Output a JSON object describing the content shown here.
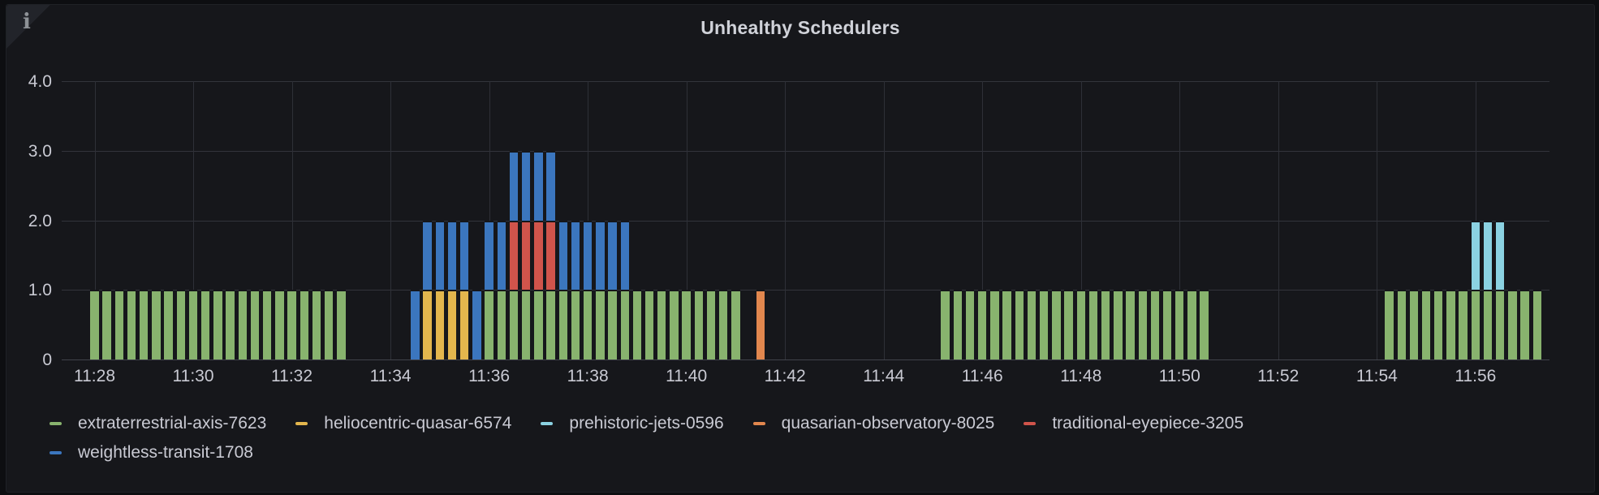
{
  "panel": {
    "title": "Unhealthy Schedulers",
    "info_icon": "i",
    "colors": {
      "page_bg": "#0d0e11",
      "panel_bg": "#16171b",
      "grid": "#32343b",
      "axis_text": "#c9cad3",
      "title_text": "#d0d2d9"
    }
  },
  "chart_data": {
    "type": "bar",
    "stacked": true,
    "bin_seconds": 15,
    "title": "Unhealthy Schedulers",
    "xlabel": "",
    "ylabel": "",
    "ylim": [
      0,
      4
    ],
    "grid": true,
    "legend_position": "bottom-left",
    "yticks": [
      {
        "value": 0,
        "label": "0"
      },
      {
        "value": 1,
        "label": "1.0"
      },
      {
        "value": 2,
        "label": "2.0"
      },
      {
        "value": 3,
        "label": "3.0"
      },
      {
        "value": 4,
        "label": "4.0"
      }
    ],
    "xticks": [
      "11:28",
      "11:30",
      "11:32",
      "11:34",
      "11:36",
      "11:38",
      "11:40",
      "11:42",
      "11:44",
      "11:46",
      "11:48",
      "11:50",
      "11:52",
      "11:54",
      "11:56"
    ],
    "x_domain": {
      "start": "11:27:20",
      "end": "11:57:30"
    },
    "series": [
      {
        "name": "extraterrestrial-axis-7623",
        "color": "#88b36e"
      },
      {
        "name": "heliocentric-quasar-6574",
        "color": "#e3b64d"
      },
      {
        "name": "prehistoric-jets-0596",
        "color": "#8bd2e2"
      },
      {
        "name": "quasarian-observatory-8025",
        "color": "#e2874e"
      },
      {
        "name": "traditional-eyepiece-3205",
        "color": "#d0544b"
      },
      {
        "name": "weightless-transit-1708",
        "color": "#3b76be"
      }
    ],
    "points": [
      {
        "t": "11:28:00",
        "stack": [
          [
            0,
            1
          ]
        ]
      },
      {
        "t": "11:28:15",
        "stack": [
          [
            0,
            1
          ]
        ]
      },
      {
        "t": "11:28:30",
        "stack": [
          [
            0,
            1
          ]
        ]
      },
      {
        "t": "11:28:45",
        "stack": [
          [
            0,
            1
          ]
        ]
      },
      {
        "t": "11:29:00",
        "stack": [
          [
            0,
            1
          ]
        ]
      },
      {
        "t": "11:29:15",
        "stack": [
          [
            0,
            1
          ]
        ]
      },
      {
        "t": "11:29:30",
        "stack": [
          [
            0,
            1
          ]
        ]
      },
      {
        "t": "11:29:45",
        "stack": [
          [
            0,
            1
          ]
        ]
      },
      {
        "t": "11:30:00",
        "stack": [
          [
            0,
            1
          ]
        ]
      },
      {
        "t": "11:30:15",
        "stack": [
          [
            0,
            1
          ]
        ]
      },
      {
        "t": "11:30:30",
        "stack": [
          [
            0,
            1
          ]
        ]
      },
      {
        "t": "11:30:45",
        "stack": [
          [
            0,
            1
          ]
        ]
      },
      {
        "t": "11:31:00",
        "stack": [
          [
            0,
            1
          ]
        ]
      },
      {
        "t": "11:31:15",
        "stack": [
          [
            0,
            1
          ]
        ]
      },
      {
        "t": "11:31:30",
        "stack": [
          [
            0,
            1
          ]
        ]
      },
      {
        "t": "11:31:45",
        "stack": [
          [
            0,
            1
          ]
        ]
      },
      {
        "t": "11:32:00",
        "stack": [
          [
            0,
            1
          ]
        ]
      },
      {
        "t": "11:32:15",
        "stack": [
          [
            0,
            1
          ]
        ]
      },
      {
        "t": "11:32:30",
        "stack": [
          [
            0,
            1
          ]
        ]
      },
      {
        "t": "11:32:45",
        "stack": [
          [
            0,
            1
          ]
        ]
      },
      {
        "t": "11:33:00",
        "stack": [
          [
            0,
            1
          ]
        ]
      },
      {
        "t": "11:34:30",
        "stack": [
          [
            5,
            1
          ]
        ]
      },
      {
        "t": "11:34:45",
        "stack": [
          [
            1,
            1
          ],
          [
            5,
            1
          ]
        ]
      },
      {
        "t": "11:35:00",
        "stack": [
          [
            1,
            1
          ],
          [
            5,
            1
          ]
        ]
      },
      {
        "t": "11:35:15",
        "stack": [
          [
            1,
            1
          ],
          [
            5,
            1
          ]
        ]
      },
      {
        "t": "11:35:30",
        "stack": [
          [
            1,
            1
          ],
          [
            5,
            1
          ]
        ]
      },
      {
        "t": "11:35:45",
        "stack": [
          [
            5,
            1
          ]
        ]
      },
      {
        "t": "11:36:00",
        "stack": [
          [
            0,
            1
          ],
          [
            5,
            1
          ]
        ]
      },
      {
        "t": "11:36:15",
        "stack": [
          [
            0,
            1
          ],
          [
            5,
            1
          ]
        ]
      },
      {
        "t": "11:36:30",
        "stack": [
          [
            0,
            1
          ],
          [
            4,
            1
          ],
          [
            5,
            1
          ]
        ]
      },
      {
        "t": "11:36:45",
        "stack": [
          [
            0,
            1
          ],
          [
            4,
            1
          ],
          [
            5,
            1
          ]
        ]
      },
      {
        "t": "11:37:00",
        "stack": [
          [
            0,
            1
          ],
          [
            4,
            1
          ],
          [
            5,
            1
          ]
        ]
      },
      {
        "t": "11:37:15",
        "stack": [
          [
            0,
            1
          ],
          [
            4,
            1
          ],
          [
            5,
            1
          ]
        ]
      },
      {
        "t": "11:37:30",
        "stack": [
          [
            0,
            1
          ],
          [
            5,
            1
          ]
        ]
      },
      {
        "t": "11:37:45",
        "stack": [
          [
            0,
            1
          ],
          [
            5,
            1
          ]
        ]
      },
      {
        "t": "11:38:00",
        "stack": [
          [
            0,
            1
          ],
          [
            5,
            1
          ]
        ]
      },
      {
        "t": "11:38:15",
        "stack": [
          [
            0,
            1
          ],
          [
            5,
            1
          ]
        ]
      },
      {
        "t": "11:38:30",
        "stack": [
          [
            0,
            1
          ],
          [
            5,
            1
          ]
        ]
      },
      {
        "t": "11:38:45",
        "stack": [
          [
            0,
            1
          ],
          [
            5,
            1
          ]
        ]
      },
      {
        "t": "11:39:00",
        "stack": [
          [
            0,
            1
          ]
        ]
      },
      {
        "t": "11:39:15",
        "stack": [
          [
            0,
            1
          ]
        ]
      },
      {
        "t": "11:39:30",
        "stack": [
          [
            0,
            1
          ]
        ]
      },
      {
        "t": "11:39:45",
        "stack": [
          [
            0,
            1
          ]
        ]
      },
      {
        "t": "11:40:00",
        "stack": [
          [
            0,
            1
          ]
        ]
      },
      {
        "t": "11:40:15",
        "stack": [
          [
            0,
            1
          ]
        ]
      },
      {
        "t": "11:40:30",
        "stack": [
          [
            0,
            1
          ]
        ]
      },
      {
        "t": "11:40:45",
        "stack": [
          [
            0,
            1
          ]
        ]
      },
      {
        "t": "11:41:00",
        "stack": [
          [
            0,
            1
          ]
        ]
      },
      {
        "t": "11:41:30",
        "stack": [
          [
            3,
            1
          ]
        ]
      },
      {
        "t": "11:45:15",
        "stack": [
          [
            0,
            1
          ]
        ]
      },
      {
        "t": "11:45:30",
        "stack": [
          [
            0,
            1
          ]
        ]
      },
      {
        "t": "11:45:45",
        "stack": [
          [
            0,
            1
          ]
        ]
      },
      {
        "t": "11:46:00",
        "stack": [
          [
            0,
            1
          ]
        ]
      },
      {
        "t": "11:46:15",
        "stack": [
          [
            0,
            1
          ]
        ]
      },
      {
        "t": "11:46:30",
        "stack": [
          [
            0,
            1
          ]
        ]
      },
      {
        "t": "11:46:45",
        "stack": [
          [
            0,
            1
          ]
        ]
      },
      {
        "t": "11:47:00",
        "stack": [
          [
            0,
            1
          ]
        ]
      },
      {
        "t": "11:47:15",
        "stack": [
          [
            0,
            1
          ]
        ]
      },
      {
        "t": "11:47:30",
        "stack": [
          [
            0,
            1
          ]
        ]
      },
      {
        "t": "11:47:45",
        "stack": [
          [
            0,
            1
          ]
        ]
      },
      {
        "t": "11:48:00",
        "stack": [
          [
            0,
            1
          ]
        ]
      },
      {
        "t": "11:48:15",
        "stack": [
          [
            0,
            1
          ]
        ]
      },
      {
        "t": "11:48:30",
        "stack": [
          [
            0,
            1
          ]
        ]
      },
      {
        "t": "11:48:45",
        "stack": [
          [
            0,
            1
          ]
        ]
      },
      {
        "t": "11:49:00",
        "stack": [
          [
            0,
            1
          ]
        ]
      },
      {
        "t": "11:49:15",
        "stack": [
          [
            0,
            1
          ]
        ]
      },
      {
        "t": "11:49:30",
        "stack": [
          [
            0,
            1
          ]
        ]
      },
      {
        "t": "11:49:45",
        "stack": [
          [
            0,
            1
          ]
        ]
      },
      {
        "t": "11:50:00",
        "stack": [
          [
            0,
            1
          ]
        ]
      },
      {
        "t": "11:50:15",
        "stack": [
          [
            0,
            1
          ]
        ]
      },
      {
        "t": "11:50:30",
        "stack": [
          [
            0,
            1
          ]
        ]
      },
      {
        "t": "11:54:15",
        "stack": [
          [
            0,
            1
          ]
        ]
      },
      {
        "t": "11:54:30",
        "stack": [
          [
            0,
            1
          ]
        ]
      },
      {
        "t": "11:54:45",
        "stack": [
          [
            0,
            1
          ]
        ]
      },
      {
        "t": "11:55:00",
        "stack": [
          [
            0,
            1
          ]
        ]
      },
      {
        "t": "11:55:15",
        "stack": [
          [
            0,
            1
          ]
        ]
      },
      {
        "t": "11:55:30",
        "stack": [
          [
            0,
            1
          ]
        ]
      },
      {
        "t": "11:55:45",
        "stack": [
          [
            0,
            1
          ]
        ]
      },
      {
        "t": "11:56:00",
        "stack": [
          [
            0,
            1
          ],
          [
            2,
            1
          ]
        ]
      },
      {
        "t": "11:56:15",
        "stack": [
          [
            0,
            1
          ],
          [
            2,
            1
          ]
        ]
      },
      {
        "t": "11:56:30",
        "stack": [
          [
            0,
            1
          ],
          [
            2,
            1
          ]
        ]
      },
      {
        "t": "11:56:45",
        "stack": [
          [
            0,
            1
          ]
        ]
      },
      {
        "t": "11:57:00",
        "stack": [
          [
            0,
            1
          ]
        ]
      },
      {
        "t": "11:57:15",
        "stack": [
          [
            0,
            1
          ]
        ]
      }
    ]
  },
  "legend": {
    "row_break": 5
  }
}
